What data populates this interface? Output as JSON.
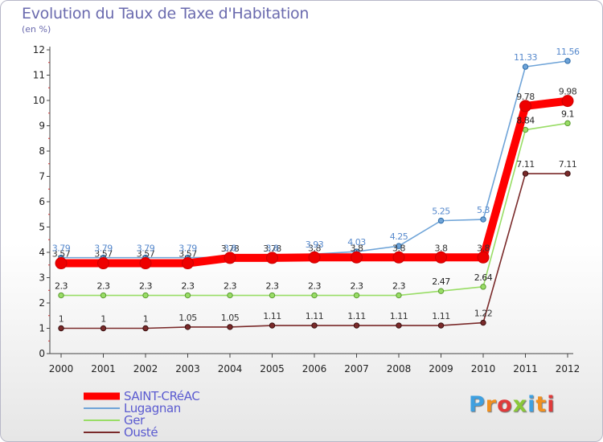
{
  "brand": "Proxiti",
  "chart_data": {
    "type": "line",
    "title": "Evolution du Taux de Taxe d'Habitation",
    "subtitle": "(en %)",
    "categories": [
      "2000",
      "2001",
      "2002",
      "2003",
      "2004",
      "2005",
      "2006",
      "2007",
      "2008",
      "2009",
      "2010",
      "2011",
      "2012"
    ],
    "ylim": [
      0,
      12
    ],
    "yticks": [
      0,
      1,
      2,
      3,
      4,
      5,
      6,
      7,
      8,
      9,
      10,
      11,
      12
    ],
    "series": [
      {
        "name": "SAINT-CRéAC",
        "color": "#ff0000",
        "values": [
          3.57,
          3.57,
          3.57,
          3.57,
          3.78,
          3.78,
          3.8,
          3.8,
          3.8,
          3.8,
          3.8,
          9.78,
          9.98
        ],
        "labels": [
          "3.57",
          "3.57",
          "3.57",
          "3.57",
          "3.78",
          "3.78",
          "3.8",
          "3.8",
          "3.8",
          "3.8",
          "3.8",
          "9.78",
          "9.98"
        ]
      },
      {
        "name": "Lugagnan",
        "color": "#6fa4d8",
        "values": [
          3.79,
          3.79,
          3.79,
          3.79,
          3.8,
          3.8,
          3.93,
          4.03,
          4.25,
          5.25,
          5.3,
          11.33,
          11.56
        ],
        "labels": [
          "3.79",
          "3.79",
          "3.79",
          "3.79",
          "3.8",
          "3.8",
          "3.93",
          "4.03",
          "4.25",
          "5.25",
          "5.3",
          "11.33",
          "11.56"
        ]
      },
      {
        "name": "Ger",
        "color": "#99dd66",
        "values": [
          2.3,
          2.3,
          2.3,
          2.3,
          2.3,
          2.3,
          2.3,
          2.3,
          2.3,
          2.47,
          2.64,
          8.84,
          9.1
        ],
        "labels": [
          "2.3",
          "2.3",
          "2.3",
          "2.3",
          "2.3",
          "2.3",
          "2.3",
          "2.3",
          "2.3",
          "2.47",
          "2.64",
          "8.84",
          "9.1"
        ]
      },
      {
        "name": "Ousté",
        "color": "#7a2a2a",
        "values": [
          1,
          1,
          1,
          1.05,
          1.05,
          1.11,
          1.11,
          1.11,
          1.11,
          1.11,
          1.22,
          7.11,
          7.11
        ],
        "labels": [
          "1",
          "1",
          "1",
          "1.05",
          "1.05",
          "1.11",
          "1.11",
          "1.11",
          "1.11",
          "1.11",
          "1.22",
          "7.11",
          "7.11"
        ]
      }
    ],
    "legend": "bottom-left",
    "grid": false
  }
}
